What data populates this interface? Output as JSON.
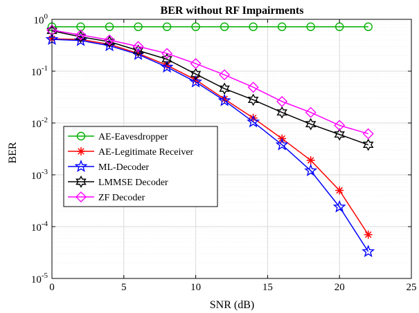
{
  "chart_data": {
    "type": "line",
    "title": "BER without RF Impairments",
    "xlabel": "SNR (dB)",
    "ylabel": "BER",
    "xlim": [
      0,
      25
    ],
    "ylim": [
      1e-05,
      1
    ],
    "yscale": "log",
    "grid": true,
    "legend_position": "center-left",
    "x_ticks": [
      "0",
      "5",
      "10",
      "15",
      "20",
      "25"
    ],
    "y_ticks": [
      {
        "base": "10",
        "exp": "-5"
      },
      {
        "base": "10",
        "exp": "-4"
      },
      {
        "base": "10",
        "exp": "-3"
      },
      {
        "base": "10",
        "exp": "-2"
      },
      {
        "base": "10",
        "exp": "-1"
      },
      {
        "base": "10",
        "exp": "0"
      }
    ],
    "x": [
      0,
      2,
      4,
      6,
      8,
      10,
      12,
      14,
      16,
      18,
      20,
      22
    ],
    "series": [
      {
        "name": "AE-Eavesdropper",
        "color": "#00b000",
        "marker": "circle",
        "values": [
          0.72,
          0.72,
          0.72,
          0.72,
          0.72,
          0.72,
          0.72,
          0.72,
          0.72,
          0.72,
          0.72,
          0.72
        ]
      },
      {
        "name": "AE-Legitimate Receiver",
        "color": "#ff0000",
        "marker": "asterisk",
        "values": [
          0.42,
          0.41,
          0.33,
          0.22,
          0.13,
          0.068,
          0.029,
          0.0125,
          0.005,
          0.0019,
          0.0005,
          7e-05
        ]
      },
      {
        "name": "ML-Decoder",
        "color": "#0000ff",
        "marker": "pentagram",
        "values": [
          0.41,
          0.39,
          0.31,
          0.21,
          0.12,
          0.062,
          0.027,
          0.0105,
          0.0038,
          0.0012,
          0.00024,
          3.3e-05
        ]
      },
      {
        "name": "LMMSE Decoder",
        "color": "#000000",
        "marker": "hexagram",
        "values": [
          0.6,
          0.46,
          0.37,
          0.25,
          0.17,
          0.088,
          0.046,
          0.028,
          0.016,
          0.0095,
          0.006,
          0.0038
        ]
      },
      {
        "name": "ZF Decoder",
        "color": "#ff00ff",
        "marker": "diamond",
        "values": [
          0.62,
          0.5,
          0.4,
          0.3,
          0.22,
          0.14,
          0.085,
          0.049,
          0.026,
          0.016,
          0.009,
          0.0062
        ]
      }
    ]
  }
}
